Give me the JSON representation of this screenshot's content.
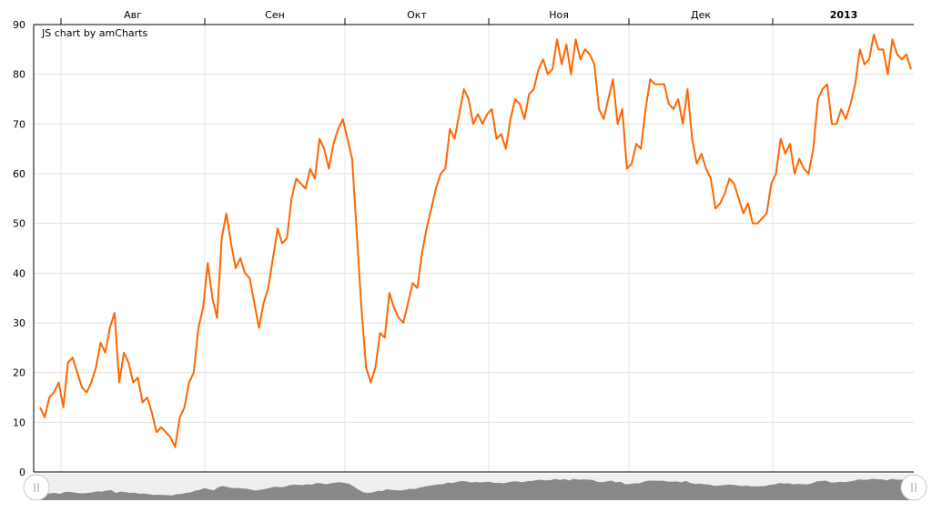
{
  "credit": "JS chart by amCharts",
  "chart_data": {
    "type": "line",
    "title": "",
    "xlabel": "",
    "ylabel": "",
    "ylim": [
      0,
      90
    ],
    "y_ticks": [
      0,
      10,
      20,
      30,
      40,
      50,
      60,
      70,
      80,
      90
    ],
    "period_labels": [
      {
        "label": "Авг",
        "bold": false
      },
      {
        "label": "Сен",
        "bold": false
      },
      {
        "label": "Окт",
        "bold": false
      },
      {
        "label": "Ноя",
        "bold": false
      },
      {
        "label": "Дек",
        "bold": false
      },
      {
        "label": "2013",
        "bold": true
      }
    ],
    "grid": true,
    "line_color": "#FF6600",
    "scrollbar_fill": "#888888",
    "scrollbar_bg": "#EFEFEF",
    "series": [
      {
        "values": [
          13,
          11,
          15,
          16,
          18,
          13,
          22,
          23,
          20,
          17,
          16,
          18,
          21,
          26,
          24,
          29,
          32,
          18,
          24,
          22,
          18,
          19,
          14,
          15,
          12,
          8,
          9,
          8,
          7,
          5,
          11,
          13,
          18,
          20,
          29,
          33,
          42,
          35,
          31,
          47,
          52,
          46,
          41,
          43,
          40,
          39,
          34,
          29,
          34,
          37,
          43,
          49,
          46,
          47,
          55,
          59,
          58,
          57,
          61,
          59,
          67,
          65,
          61,
          66,
          69,
          71,
          67,
          63,
          48,
          33,
          21,
          18,
          21,
          28,
          27,
          36,
          33,
          31,
          30,
          34,
          38,
          37,
          44,
          49,
          53,
          57,
          60,
          61,
          69,
          67,
          72,
          77,
          75,
          70,
          72,
          70,
          72,
          73,
          67,
          68,
          65,
          71,
          75,
          74,
          71,
          76,
          77,
          81,
          83,
          80,
          81,
          87,
          82,
          86,
          80,
          87,
          83,
          85,
          84,
          82,
          73,
          71,
          75,
          79,
          70,
          73,
          61,
          62,
          66,
          65,
          73,
          79,
          78,
          78,
          78,
          74,
          73,
          75,
          70,
          77,
          67,
          62,
          64,
          61,
          59,
          53,
          54,
          56,
          59,
          58,
          55,
          52,
          54,
          50,
          50,
          51,
          52,
          58,
          60,
          67,
          64,
          66,
          60,
          63,
          61,
          60,
          65,
          75,
          77,
          78,
          70,
          70,
          73,
          71,
          74,
          78,
          85,
          82,
          83,
          88,
          85,
          85,
          80,
          87,
          84,
          83,
          84,
          81
        ]
      }
    ]
  }
}
